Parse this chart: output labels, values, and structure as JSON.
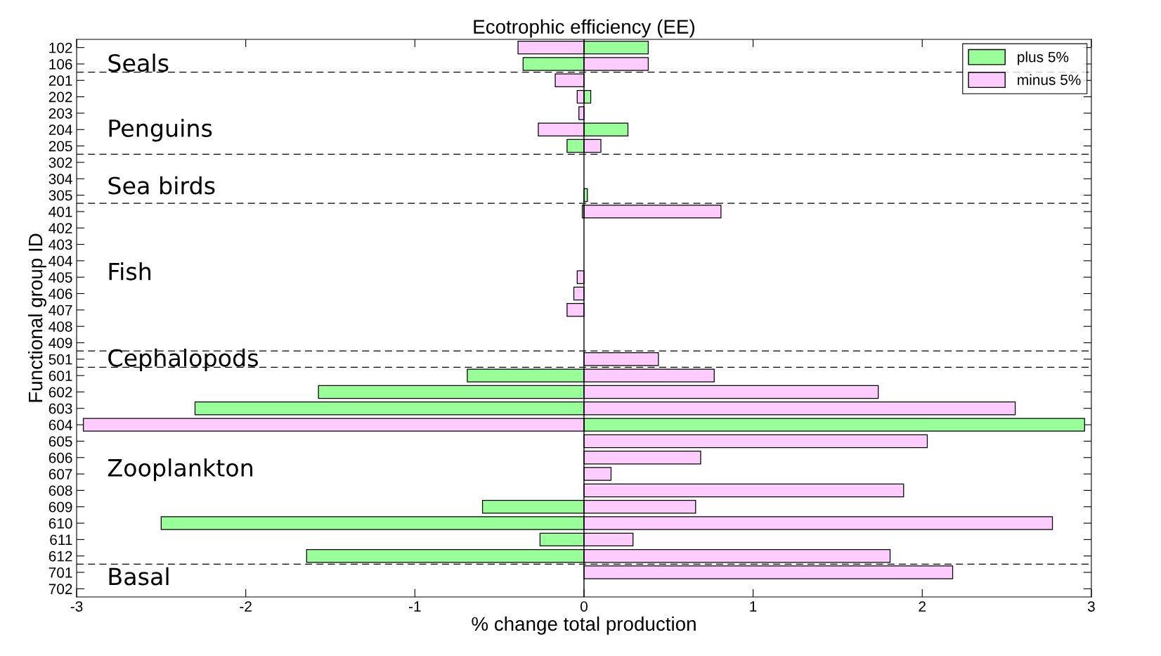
{
  "chart_data": {
    "type": "bar",
    "orientation": "horizontal",
    "title": "Ecotrophic efficiency (EE)",
    "xlabel": "% change total production",
    "ylabel": "Functional group ID",
    "categories": [
      "102",
      "106",
      "201",
      "202",
      "203",
      "204",
      "205",
      "302",
      "304",
      "305",
      "401",
      "402",
      "403",
      "404",
      "405",
      "406",
      "407",
      "408",
      "409",
      "501",
      "601",
      "602",
      "603",
      "604",
      "605",
      "606",
      "607",
      "608",
      "609",
      "610",
      "611",
      "612",
      "701",
      "702"
    ],
    "series": [
      {
        "name": "plus 5%",
        "color": "#99ff99",
        "values": [
          0.38,
          -0.36,
          null,
          0.04,
          null,
          0.26,
          -0.1,
          null,
          null,
          0.02,
          -0.01,
          null,
          null,
          null,
          null,
          null,
          null,
          null,
          null,
          null,
          -0.69,
          -1.57,
          -2.3,
          2.96,
          null,
          null,
          null,
          null,
          -0.6,
          -2.5,
          -0.26,
          -1.64,
          null,
          null
        ]
      },
      {
        "name": "minus 5%",
        "color": "#ffccff",
        "values": [
          -0.39,
          0.38,
          -0.17,
          -0.04,
          -0.03,
          -0.27,
          0.1,
          null,
          null,
          null,
          0.81,
          null,
          null,
          null,
          -0.04,
          -0.06,
          -0.1,
          null,
          null,
          0.44,
          0.77,
          1.74,
          2.55,
          -2.96,
          2.03,
          0.69,
          0.16,
          1.89,
          0.66,
          2.77,
          0.29,
          1.81,
          2.18,
          null
        ]
      }
    ],
    "annotations": [
      "Seals",
      "Penguins",
      "Sea birds",
      "Fish",
      "Cephalopods",
      "Zooplankton",
      "Basal"
    ],
    "ref_lines": [
      {
        "axis": "y",
        "value": "106",
        "line_style": "dashed"
      },
      {
        "axis": "y",
        "value": "205",
        "line_style": "dashed"
      },
      {
        "axis": "y",
        "value": "305",
        "line_style": "dashed"
      },
      {
        "axis": "y",
        "value": "409",
        "line_style": "dashed"
      },
      {
        "axis": "y",
        "value": "501",
        "line_style": "dashed"
      },
      {
        "axis": "y",
        "value": "612",
        "line_style": "dashed"
      }
    ],
    "xlim": [
      -3,
      3
    ],
    "xticks": [
      -3,
      -2,
      -1,
      0,
      1,
      2,
      3
    ],
    "grid": false,
    "legend": "top right"
  }
}
